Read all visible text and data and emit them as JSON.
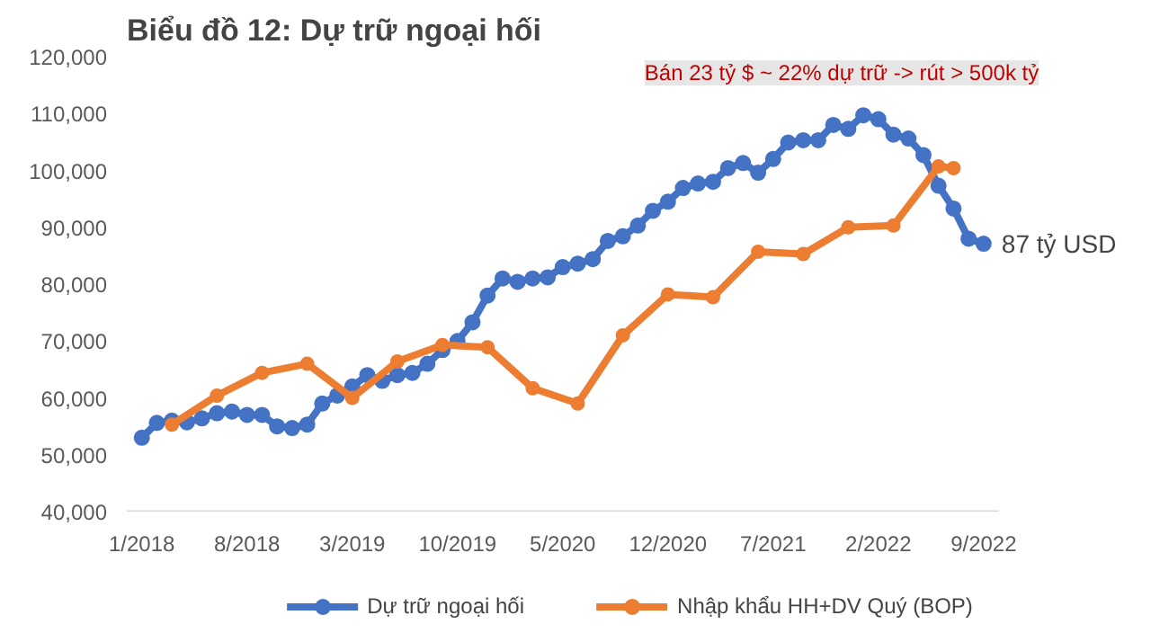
{
  "chart_data": {
    "type": "line",
    "title": "Biểu đồ 12: Dự trữ ngoại hối",
    "x": [
      "2018-01",
      "2018-02",
      "2018-03",
      "2018-04",
      "2018-05",
      "2018-06",
      "2018-07",
      "2018-08",
      "2018-09",
      "2018-10",
      "2018-11",
      "2018-12",
      "2019-01",
      "2019-02",
      "2019-03",
      "2019-04",
      "2019-05",
      "2019-06",
      "2019-07",
      "2019-08",
      "2019-09",
      "2019-10",
      "2019-11",
      "2019-12",
      "2020-01",
      "2020-02",
      "2020-03",
      "2020-04",
      "2020-05",
      "2020-06",
      "2020-07",
      "2020-08",
      "2020-09",
      "2020-10",
      "2020-11",
      "2020-12",
      "2021-01",
      "2021-02",
      "2021-03",
      "2021-04",
      "2021-05",
      "2021-06",
      "2021-07",
      "2021-08",
      "2021-09",
      "2021-10",
      "2021-11",
      "2021-12",
      "2022-01",
      "2022-02",
      "2022-03",
      "2022-04",
      "2022-05",
      "2022-06",
      "2022-07",
      "2022-08",
      "2022-09"
    ],
    "series": [
      {
        "name": "Dự trữ ngoại hối",
        "color": "#4472c4",
        "marker": "circle",
        "values": [
          53000,
          55600,
          56000,
          55700,
          56400,
          57300,
          57600,
          57000,
          57000,
          55000,
          54700,
          55300,
          59000,
          60400,
          62000,
          64000,
          63000,
          64000,
          64400,
          66000,
          68400,
          70000,
          73300,
          78000,
          81000,
          80400,
          81000,
          81200,
          83000,
          83600,
          84400,
          87600,
          88400,
          90300,
          92900,
          94500,
          96900,
          97700,
          98000,
          100400,
          101300,
          99600,
          102000,
          104900,
          105300,
          105300,
          108000,
          107300,
          109700,
          109000,
          106300,
          105600,
          102700,
          97300,
          93300,
          88000,
          87100
        ]
      },
      {
        "name": "Nhập khẩu HH+DV Quý (BOP)",
        "color": "#ed7d31",
        "marker": "circle",
        "x": [
          "2018-03",
          "2018-06",
          "2018-09",
          "2018-12",
          "2019-03",
          "2019-06",
          "2019-09",
          "2019-12",
          "2020-03",
          "2020-06",
          "2020-09",
          "2020-12",
          "2021-03",
          "2021-06",
          "2021-09",
          "2021-12",
          "2022-03",
          "2022-06",
          "2022-07"
        ],
        "values": [
          55300,
          60400,
          64400,
          66000,
          60000,
          66400,
          69300,
          68900,
          61700,
          59000,
          71000,
          78200,
          77700,
          85700,
          85300,
          90000,
          90300,
          100700,
          100400
        ]
      }
    ],
    "xlim": [
      "2017-12",
      "2022-10"
    ],
    "xticks": [
      {
        "value": "2018-01",
        "label": "1/2018"
      },
      {
        "value": "2018-08",
        "label": "8/2018"
      },
      {
        "value": "2019-03",
        "label": "3/2019"
      },
      {
        "value": "2019-10",
        "label": "10/2019"
      },
      {
        "value": "2020-05",
        "label": "5/2020"
      },
      {
        "value": "2020-12",
        "label": "12/2020"
      },
      {
        "value": "2021-07",
        "label": "7/2021"
      },
      {
        "value": "2022-02",
        "label": "2/2022"
      },
      {
        "value": "2022-09",
        "label": "9/2022"
      }
    ],
    "ylim": [
      40000,
      120000
    ],
    "yticks": [
      {
        "value": 40000,
        "label": "40,000"
      },
      {
        "value": 50000,
        "label": "50,000"
      },
      {
        "value": 60000,
        "label": "60,000"
      },
      {
        "value": 70000,
        "label": "70,000"
      },
      {
        "value": 80000,
        "label": "80,000"
      },
      {
        "value": 90000,
        "label": "90,000"
      },
      {
        "value": 100000,
        "label": "100,000"
      },
      {
        "value": 110000,
        "label": "110,000"
      },
      {
        "value": 120000,
        "label": "120,000"
      }
    ],
    "grid": false,
    "legend": "bottom",
    "annotations": [
      "Bán 23 tỷ $ ~ 22% dự trữ -> rút > 500k tỷ",
      {
        "text": "87 tỷ USD",
        "x": "2022-09",
        "y": 87100
      }
    ]
  }
}
